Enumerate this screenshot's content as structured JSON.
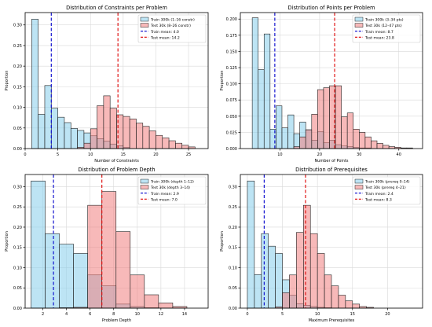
{
  "colors": {
    "train_fill": "#87CEEB",
    "test_fill": "#F08080",
    "train_mean": "#0000CC",
    "test_mean": "#DD0000",
    "edge": "#222222",
    "grid": "#d9d9d9"
  },
  "chart_data": [
    {
      "type": "bar",
      "title": "Distribution of Constraints per Problem",
      "xlabel": "Number of Constraints",
      "ylabel": "Proportion",
      "xlim": [
        0,
        28
      ],
      "ylim": [
        0,
        0.33
      ],
      "xticks": [
        0,
        5,
        10,
        15,
        20,
        25
      ],
      "yticks": [
        0.0,
        0.05,
        0.1,
        0.15,
        0.2,
        0.25,
        0.3
      ],
      "ytick_labels": [
        "0.00",
        "0.05",
        "0.10",
        "0.15",
        "0.20",
        "0.25",
        "0.30"
      ],
      "grid": true,
      "legend_position": "top-right",
      "series": [
        {
          "name": "Train 300k (1–16 constr)",
          "color_key": "train_fill",
          "bin_width": 1.0,
          "bin_starts": [
            1,
            2,
            3,
            4,
            5,
            6,
            7,
            8,
            9,
            10,
            11,
            12,
            13,
            14,
            15
          ],
          "values": [
            0.314,
            0.083,
            0.153,
            0.098,
            0.076,
            0.063,
            0.049,
            0.044,
            0.038,
            0.031,
            0.024,
            0.018,
            0.011,
            0.007,
            0.003
          ]
        },
        {
          "name": "Test 30k (8–26 constr)",
          "color_key": "test_fill",
          "bin_width": 1.0,
          "bin_starts": [
            8,
            9,
            10,
            11,
            12,
            13,
            14,
            15,
            16,
            17,
            18,
            19,
            20,
            21,
            22,
            23,
            24,
            25
          ],
          "values": [
            0.003,
            0.013,
            0.048,
            0.104,
            0.128,
            0.098,
            0.082,
            0.078,
            0.072,
            0.062,
            0.054,
            0.043,
            0.032,
            0.026,
            0.019,
            0.013,
            0.008,
            0.004
          ]
        }
      ],
      "mean_lines": [
        {
          "label": "Train mean: 4.0",
          "value": 4.0,
          "color_key": "train_mean"
        },
        {
          "label": "Test mean: 14.2",
          "value": 14.2,
          "color_key": "test_mean"
        }
      ]
    },
    {
      "type": "bar",
      "title": "Distribution of Points per Problem",
      "xlabel": "Number of Points",
      "ylabel": "Proportion",
      "xlim": [
        0,
        46
      ],
      "ylim": [
        0,
        0.21
      ],
      "xticks": [
        10,
        20,
        30,
        40
      ],
      "yticks": [
        0.0,
        0.025,
        0.05,
        0.075,
        0.1,
        0.125,
        0.15,
        0.175,
        0.2
      ],
      "ytick_labels": [
        "0.000",
        "0.025",
        "0.050",
        "0.075",
        "0.100",
        "0.125",
        "0.150",
        "0.175",
        "0.200"
      ],
      "grid": true,
      "legend_position": "top-right",
      "series": [
        {
          "name": "Train 300k (3–34 pts)",
          "color_key": "train_fill",
          "bin_width": 1.5,
          "bin_starts": [
            3,
            4.5,
            6,
            7.5,
            9,
            10.5,
            12,
            13.5,
            15,
            16.5,
            18,
            19.5,
            21,
            22.5,
            24,
            25.5,
            27,
            28.5,
            30,
            31.5
          ],
          "values": [
            0.202,
            0.122,
            0.177,
            0.03,
            0.066,
            0.032,
            0.052,
            0.023,
            0.041,
            0.029,
            0.013,
            0.026,
            0.009,
            0.013,
            0.006,
            0.004,
            0.003,
            0.002,
            0.001,
            0.001
          ]
        },
        {
          "name": "Test 30k (12–47 pts)",
          "color_key": "test_fill",
          "bin_width": 1.5,
          "bin_starts": [
            13.5,
            15,
            16.5,
            18,
            19.5,
            21,
            22.5,
            24,
            25.5,
            27,
            28.5,
            30,
            31.5,
            33,
            34.5,
            36,
            37.5,
            39,
            40.5,
            42
          ],
          "values": [
            0.003,
            0.018,
            0.029,
            0.053,
            0.091,
            0.094,
            0.097,
            0.097,
            0.049,
            0.055,
            0.03,
            0.025,
            0.018,
            0.012,
            0.008,
            0.005,
            0.003,
            0.002,
            0.001,
            0.001
          ]
        }
      ],
      "mean_lines": [
        {
          "label": "Train mean: 8.7",
          "value": 8.7,
          "color_key": "train_mean"
        },
        {
          "label": "Test mean: 23.8",
          "value": 23.8,
          "color_key": "test_mean"
        }
      ]
    },
    {
      "type": "bar",
      "title": "Distribution of Problem Depth",
      "xlabel": "Problem Depth",
      "ylabel": "Proportion",
      "xlim": [
        0.5,
        16
      ],
      "ylim": [
        0,
        0.33
      ],
      "xticks": [
        2,
        4,
        6,
        8,
        10,
        12,
        14
      ],
      "yticks": [
        0.0,
        0.05,
        0.1,
        0.15,
        0.2,
        0.25,
        0.3
      ],
      "ytick_labels": [
        "0.00",
        "0.05",
        "0.10",
        "0.15",
        "0.20",
        "0.25",
        "0.30"
      ],
      "grid": true,
      "legend_position": "top-right",
      "series": [
        {
          "name": "Train 300k (depth 1–12)",
          "color_key": "train_fill",
          "bin_width": 1.2,
          "bin_starts": [
            1.0,
            2.2,
            3.4,
            4.6,
            5.8,
            7.0,
            8.2,
            9.4,
            10.6
          ],
          "values": [
            0.314,
            0.184,
            0.158,
            0.135,
            0.082,
            0.055,
            0.01,
            0.004,
            0.001
          ]
        },
        {
          "name": "Test 30k (depth 3–14)",
          "color_key": "test_fill",
          "bin_width": 1.2,
          "bin_starts": [
            3.4,
            4.6,
            5.8,
            7.0,
            8.2,
            9.4,
            10.6,
            11.8,
            13.0
          ],
          "values": [
            0.001,
            0.002,
            0.254,
            0.288,
            0.189,
            0.082,
            0.033,
            0.013,
            0.004
          ]
        }
      ],
      "mean_lines": [
        {
          "label": "Train mean: 2.9",
          "value": 2.9,
          "color_key": "train_mean"
        },
        {
          "label": "Test mean: 7.0",
          "value": 7.0,
          "color_key": "test_mean"
        }
      ]
    },
    {
      "type": "bar",
      "title": "Distribution of Prerequisites",
      "xlabel": "Maximum Prerequisites",
      "ylabel": "Proportion",
      "xlim": [
        -1,
        25
      ],
      "ylim": [
        0,
        0.33
      ],
      "xticks": [
        0,
        5,
        10,
        15,
        20
      ],
      "yticks": [
        0.0,
        0.05,
        0.1,
        0.15,
        0.2,
        0.25,
        0.3
      ],
      "ytick_labels": [
        "0.00",
        "0.05",
        "0.10",
        "0.15",
        "0.20",
        "0.25",
        "0.30"
      ],
      "grid": true,
      "legend_position": "top-right",
      "series": [
        {
          "name": "Train 300k (prereq 0–14)",
          "color_key": "train_fill",
          "bin_width": 1.0,
          "bin_starts": [
            0,
            1,
            2,
            3,
            4,
            5,
            6,
            7,
            8,
            9,
            10,
            11
          ],
          "values": [
            0.314,
            0.083,
            0.184,
            0.153,
            0.135,
            0.07,
            0.032,
            0.011,
            0.007,
            0.004,
            0.002,
            0.001
          ]
        },
        {
          "name": "Test 30k (prereq 4–21)",
          "color_key": "test_fill",
          "bin_width": 1.0,
          "bin_starts": [
            4,
            5,
            6,
            7,
            8,
            9,
            10,
            11,
            12,
            13,
            14,
            15,
            16,
            17
          ],
          "values": [
            0.003,
            0.038,
            0.082,
            0.187,
            0.254,
            0.184,
            0.135,
            0.082,
            0.055,
            0.032,
            0.018,
            0.01,
            0.004,
            0.002
          ]
        }
      ],
      "mean_lines": [
        {
          "label": "Train mean: 2.4",
          "value": 2.4,
          "color_key": "train_mean"
        },
        {
          "label": "Test mean: 8.3",
          "value": 8.3,
          "color_key": "test_mean"
        }
      ]
    }
  ]
}
